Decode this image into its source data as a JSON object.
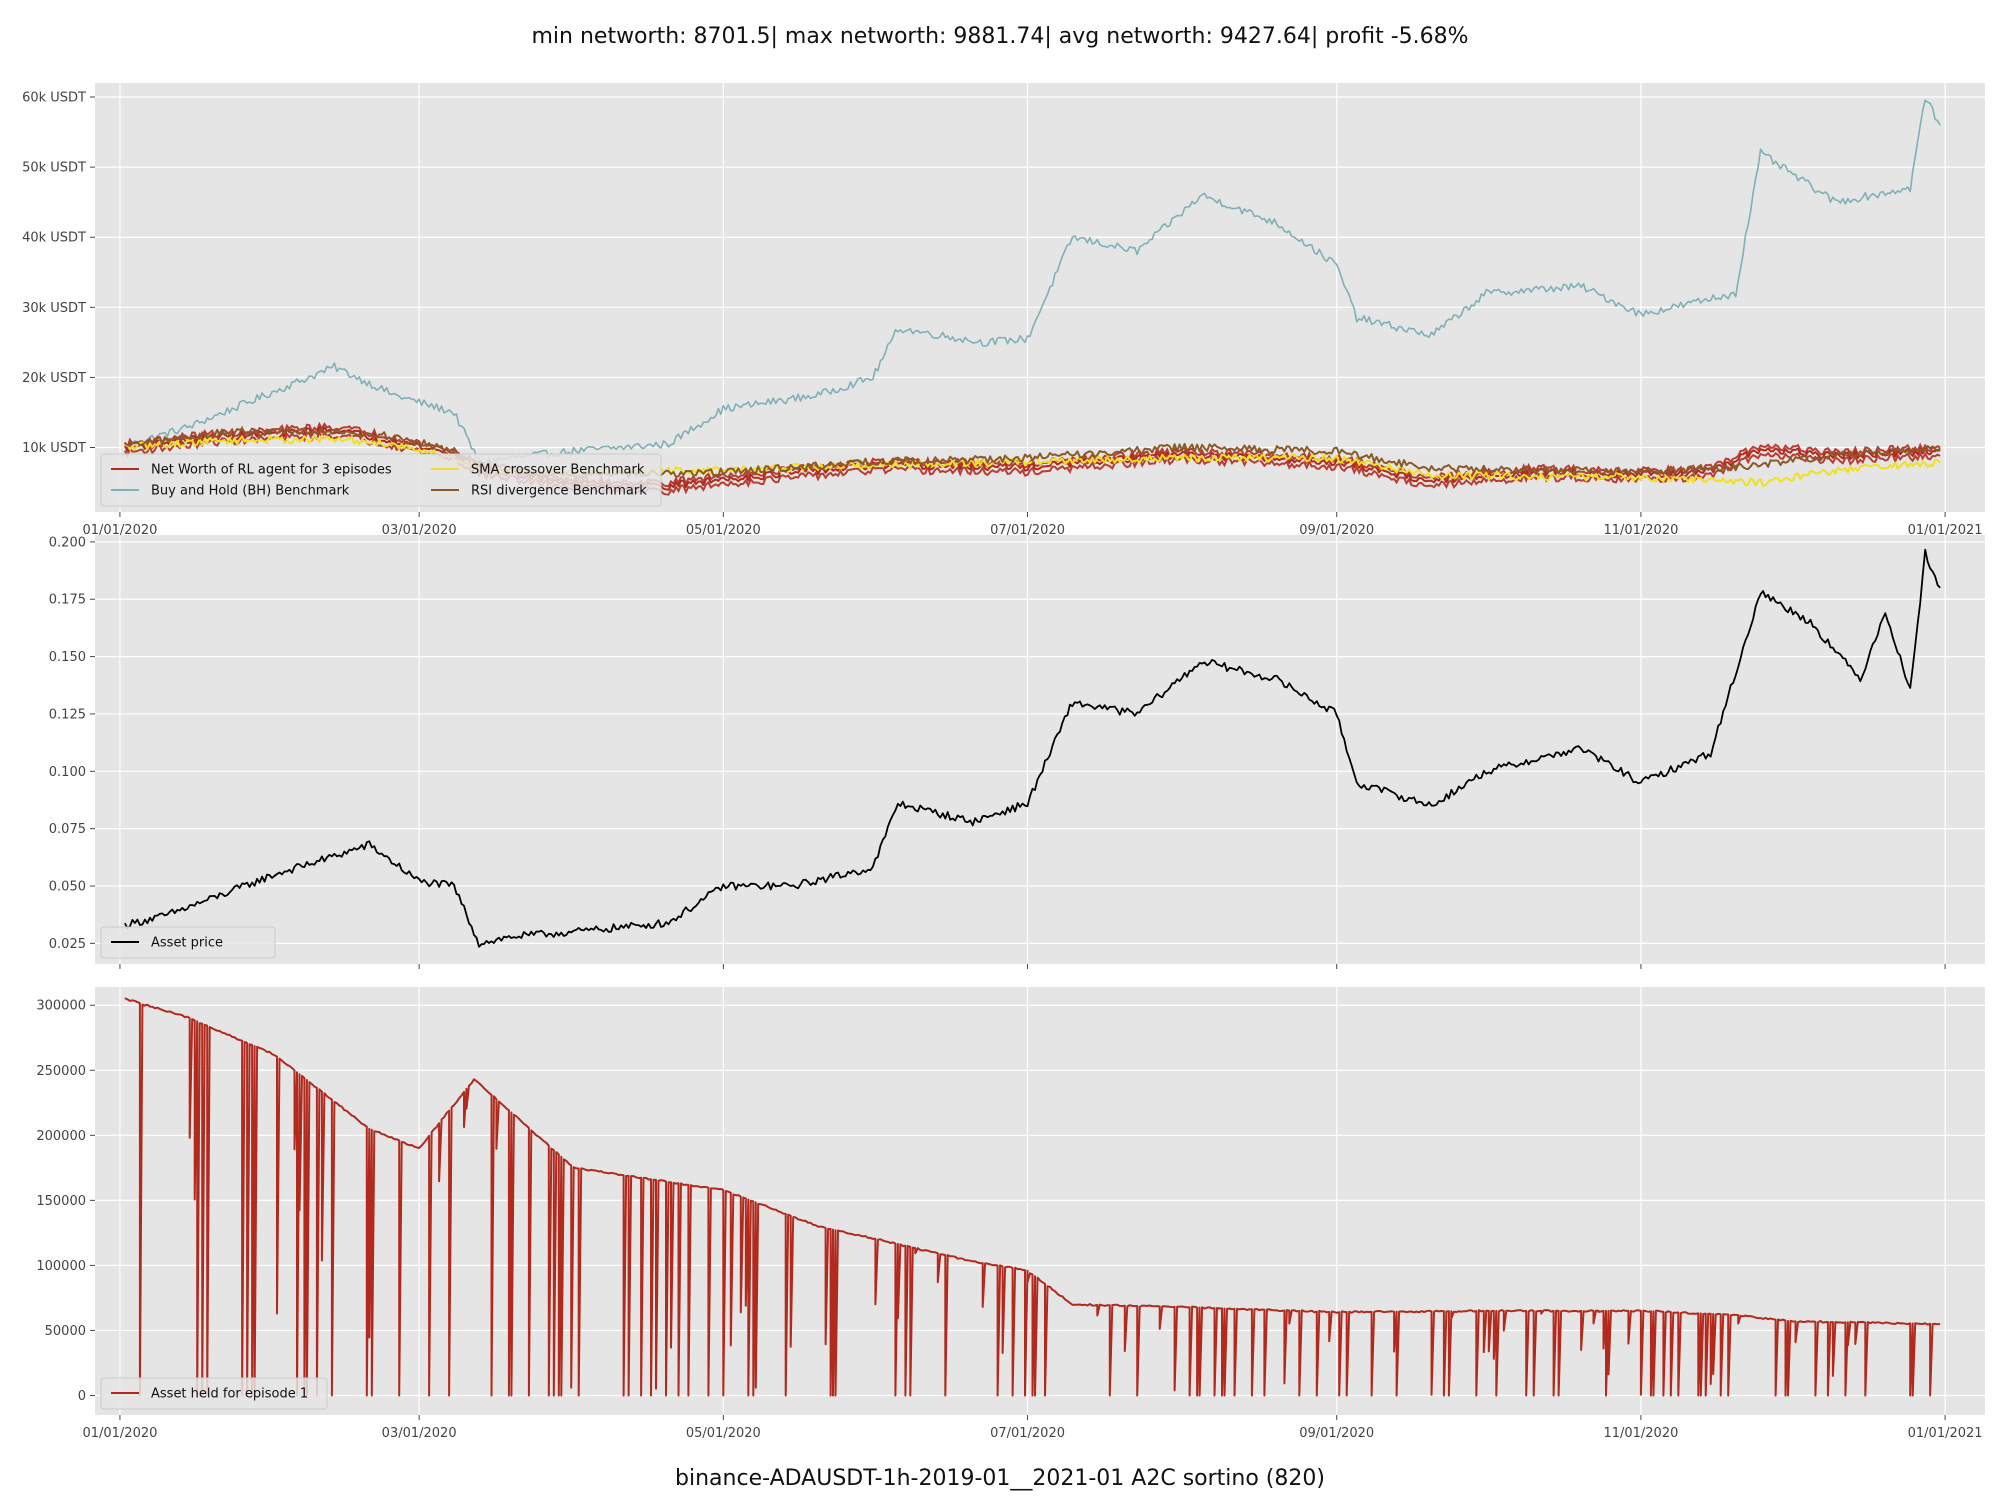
{
  "figure": {
    "title": "min networth: 8701.5| max networth: 9881.74| avg networth: 9427.64| profit -5.68%",
    "caption": "binance-ADAUSDT-1h-2019-01__2021-01 A2C sortino  (820)"
  },
  "colors": {
    "background": "#e5e5e5",
    "grid": "#ffffff",
    "net_worth": "#b22a1e",
    "buy_hold": "#7fb0b3",
    "sma": "#f0e020",
    "rsi": "#8b5a2b",
    "asset_price": "#000000",
    "asset_held": "#b22a1e"
  },
  "chart_data": [
    {
      "type": "line",
      "name": "networth-panel",
      "x_type": "date",
      "xlim": [
        "2019-12-27",
        "2021-01-09"
      ],
      "x_ticks": [
        "2020-01-01",
        "2020-03-01",
        "2020-05-01",
        "2020-07-01",
        "2020-09-01",
        "2020-11-01",
        "2021-01-01"
      ],
      "x_tick_labels": [
        "01/01/2020",
        "03/01/2020",
        "05/01/2020",
        "07/01/2020",
        "09/01/2020",
        "11/01/2020",
        "01/01/2021"
      ],
      "ylim": [
        800,
        62000
      ],
      "y_ticks": [
        10000,
        20000,
        30000,
        40000,
        50000,
        60000
      ],
      "y_tick_labels": [
        "10k USDT",
        "20k USDT",
        "30k USDT",
        "40k USDT",
        "50k USDT",
        "60k USDT"
      ],
      "grid": true,
      "legend": {
        "placement": "lower-left",
        "columns": 2,
        "entries": [
          "Net Worth of RL agent for 3 episodes",
          "Buy and Hold (BH) Benchmark",
          "SMA crossover Benchmark",
          "RSI divergence Benchmark"
        ]
      },
      "series": [
        {
          "name": "Buy and Hold (BH) Benchmark",
          "color_key": "buy_hold",
          "x": [
            "2020-01-02",
            "2020-01-15",
            "2020-02-01",
            "2020-02-13",
            "2020-02-25",
            "2020-03-08",
            "2020-03-13",
            "2020-04-01",
            "2020-04-20",
            "2020-05-01",
            "2020-05-20",
            "2020-05-31",
            "2020-06-05",
            "2020-06-22",
            "2020-07-01",
            "2020-07-10",
            "2020-07-23",
            "2020-08-05",
            "2020-08-20",
            "2020-09-01",
            "2020-09-05",
            "2020-09-20",
            "2020-10-01",
            "2020-10-20",
            "2020-11-01",
            "2020-11-20",
            "2020-11-25",
            "2020-12-10",
            "2020-12-25",
            "2020-12-28",
            "2020-12-31"
          ],
          "y": [
            10200,
            13000,
            18000,
            21500,
            17500,
            15000,
            8000,
            9500,
            10500,
            15500,
            17500,
            20000,
            27000,
            25000,
            25500,
            40000,
            38000,
            46000,
            42000,
            36000,
            28500,
            26000,
            32000,
            33000,
            29000,
            32000,
            52000,
            45000,
            47000,
            60000,
            56000
          ]
        },
        {
          "name": "Net Worth of RL agent for 3 episodes",
          "color_key": "net_worth",
          "x": [
            "2020-01-02",
            "2020-01-20",
            "2020-02-13",
            "2020-02-25",
            "2020-03-08",
            "2020-03-13",
            "2020-04-01",
            "2020-04-20",
            "2020-05-01",
            "2020-06-01",
            "2020-07-01",
            "2020-08-01",
            "2020-09-01",
            "2020-09-20",
            "2020-10-10",
            "2020-11-01",
            "2020-11-15",
            "2020-11-25",
            "2020-12-10",
            "2020-12-31"
          ],
          "y": [
            10000,
            11500,
            12500,
            11000,
            9000,
            7000,
            4800,
            4500,
            5500,
            7500,
            7200,
            9000,
            8000,
            5200,
            6500,
            6200,
            6500,
            9800,
            8800,
            9500
          ]
        },
        {
          "name": "SMA crossover Benchmark",
          "color_key": "sma",
          "x": [
            "2020-01-02",
            "2020-01-20",
            "2020-02-13",
            "2020-02-25",
            "2020-03-08",
            "2020-03-13",
            "2020-04-01",
            "2020-05-01",
            "2020-06-01",
            "2020-07-01",
            "2020-08-01",
            "2020-09-01",
            "2020-09-20",
            "2020-11-01",
            "2020-11-25",
            "2020-12-10",
            "2020-12-31"
          ],
          "y": [
            10000,
            11000,
            11200,
            10500,
            8500,
            7000,
            6500,
            6800,
            7500,
            8000,
            8500,
            8500,
            6000,
            5800,
            5000,
            6800,
            7800
          ]
        },
        {
          "name": "RSI divergence Benchmark",
          "color_key": "rsi",
          "x": [
            "2020-01-02",
            "2020-01-20",
            "2020-02-13",
            "2020-02-25",
            "2020-03-08",
            "2020-03-13",
            "2020-04-01",
            "2020-05-01",
            "2020-06-01",
            "2020-07-01",
            "2020-08-01",
            "2020-09-01",
            "2020-09-20",
            "2020-11-01",
            "2020-11-25",
            "2020-12-10",
            "2020-12-31"
          ],
          "y": [
            10200,
            12000,
            12500,
            11500,
            9500,
            7500,
            6000,
            6500,
            8000,
            8500,
            10000,
            9500,
            7000,
            6500,
            7500,
            9000,
            9900
          ]
        }
      ]
    },
    {
      "type": "line",
      "name": "price-panel",
      "x_type": "date",
      "xlim": [
        "2019-12-27",
        "2021-01-09"
      ],
      "x_ticks": [
        "2020-01-01",
        "2020-03-01",
        "2020-05-01",
        "2020-07-01",
        "2020-09-01",
        "2020-11-01",
        "2021-01-01"
      ],
      "x_tick_labels": [],
      "ylim": [
        0.016,
        0.203
      ],
      "y_ticks": [
        0.025,
        0.05,
        0.075,
        0.1,
        0.125,
        0.15,
        0.175,
        0.2
      ],
      "y_tick_labels": [
        "0.025",
        "0.050",
        "0.075",
        "0.100",
        "0.125",
        "0.150",
        "0.175",
        "0.200"
      ],
      "grid": true,
      "legend": {
        "placement": "lower-left",
        "columns": 1,
        "entries": [
          "Asset price"
        ]
      },
      "series": [
        {
          "name": "Asset price",
          "color_key": "asset_price",
          "x": [
            "2020-01-02",
            "2020-01-10",
            "2020-01-20",
            "2020-02-01",
            "2020-02-13",
            "2020-02-20",
            "2020-03-01",
            "2020-03-08",
            "2020-03-13",
            "2020-03-20",
            "2020-04-01",
            "2020-04-20",
            "2020-05-01",
            "2020-05-15",
            "2020-05-31",
            "2020-06-05",
            "2020-06-20",
            "2020-07-01",
            "2020-07-10",
            "2020-07-23",
            "2020-08-05",
            "2020-08-20",
            "2020-09-01",
            "2020-09-05",
            "2020-09-20",
            "2020-10-01",
            "2020-10-20",
            "2020-11-01",
            "2020-11-15",
            "2020-11-25",
            "2020-12-05",
            "2020-12-15",
            "2020-12-20",
            "2020-12-25",
            "2020-12-28",
            "2020-12-31"
          ],
          "y": [
            0.033,
            0.037,
            0.045,
            0.055,
            0.063,
            0.068,
            0.052,
            0.05,
            0.025,
            0.028,
            0.03,
            0.034,
            0.05,
            0.05,
            0.058,
            0.086,
            0.078,
            0.086,
            0.13,
            0.125,
            0.148,
            0.14,
            0.125,
            0.095,
            0.085,
            0.1,
            0.11,
            0.095,
            0.108,
            0.178,
            0.165,
            0.14,
            0.17,
            0.135,
            0.195,
            0.18
          ]
        }
      ]
    },
    {
      "type": "line",
      "name": "held-panel",
      "x_type": "date",
      "xlim": [
        "2019-12-27",
        "2021-01-09"
      ],
      "x_ticks": [
        "2020-01-01",
        "2020-03-01",
        "2020-05-01",
        "2020-07-01",
        "2020-09-01",
        "2020-11-01",
        "2021-01-01"
      ],
      "x_tick_labels": [
        "01/01/2020",
        "03/01/2020",
        "05/01/2020",
        "07/01/2020",
        "09/01/2020",
        "11/01/2020",
        "01/01/2021"
      ],
      "ylim": [
        -15000,
        314000
      ],
      "y_ticks": [
        0,
        50000,
        100000,
        150000,
        200000,
        250000,
        300000
      ],
      "y_tick_labels": [
        "0",
        "50000",
        "100000",
        "150000",
        "200000",
        "250000",
        "300000"
      ],
      "grid": true,
      "legend": {
        "placement": "lower-left",
        "columns": 1,
        "entries": [
          "Asset held for episode 1"
        ]
      },
      "series": [
        {
          "name": "Asset held for episode 1",
          "color_key": "asset_held",
          "x": [
            "2020-01-02",
            "2020-01-15",
            "2020-02-01",
            "2020-02-20",
            "2020-03-01",
            "2020-03-12",
            "2020-04-01",
            "2020-05-01",
            "2020-05-20",
            "2020-06-01",
            "2020-06-20",
            "2020-07-01",
            "2020-07-10",
            "2020-08-01",
            "2020-09-01",
            "2020-10-01",
            "2020-11-01",
            "2020-11-20",
            "2020-12-01",
            "2020-12-31"
          ],
          "y": [
            305000,
            290000,
            262000,
            205000,
            190000,
            243000,
            175000,
            158000,
            130000,
            120000,
            103000,
            96000,
            70000,
            68000,
            64000,
            65000,
            65000,
            62000,
            57000,
            55000
          ],
          "dropout_density": 0.6
        }
      ]
    }
  ]
}
